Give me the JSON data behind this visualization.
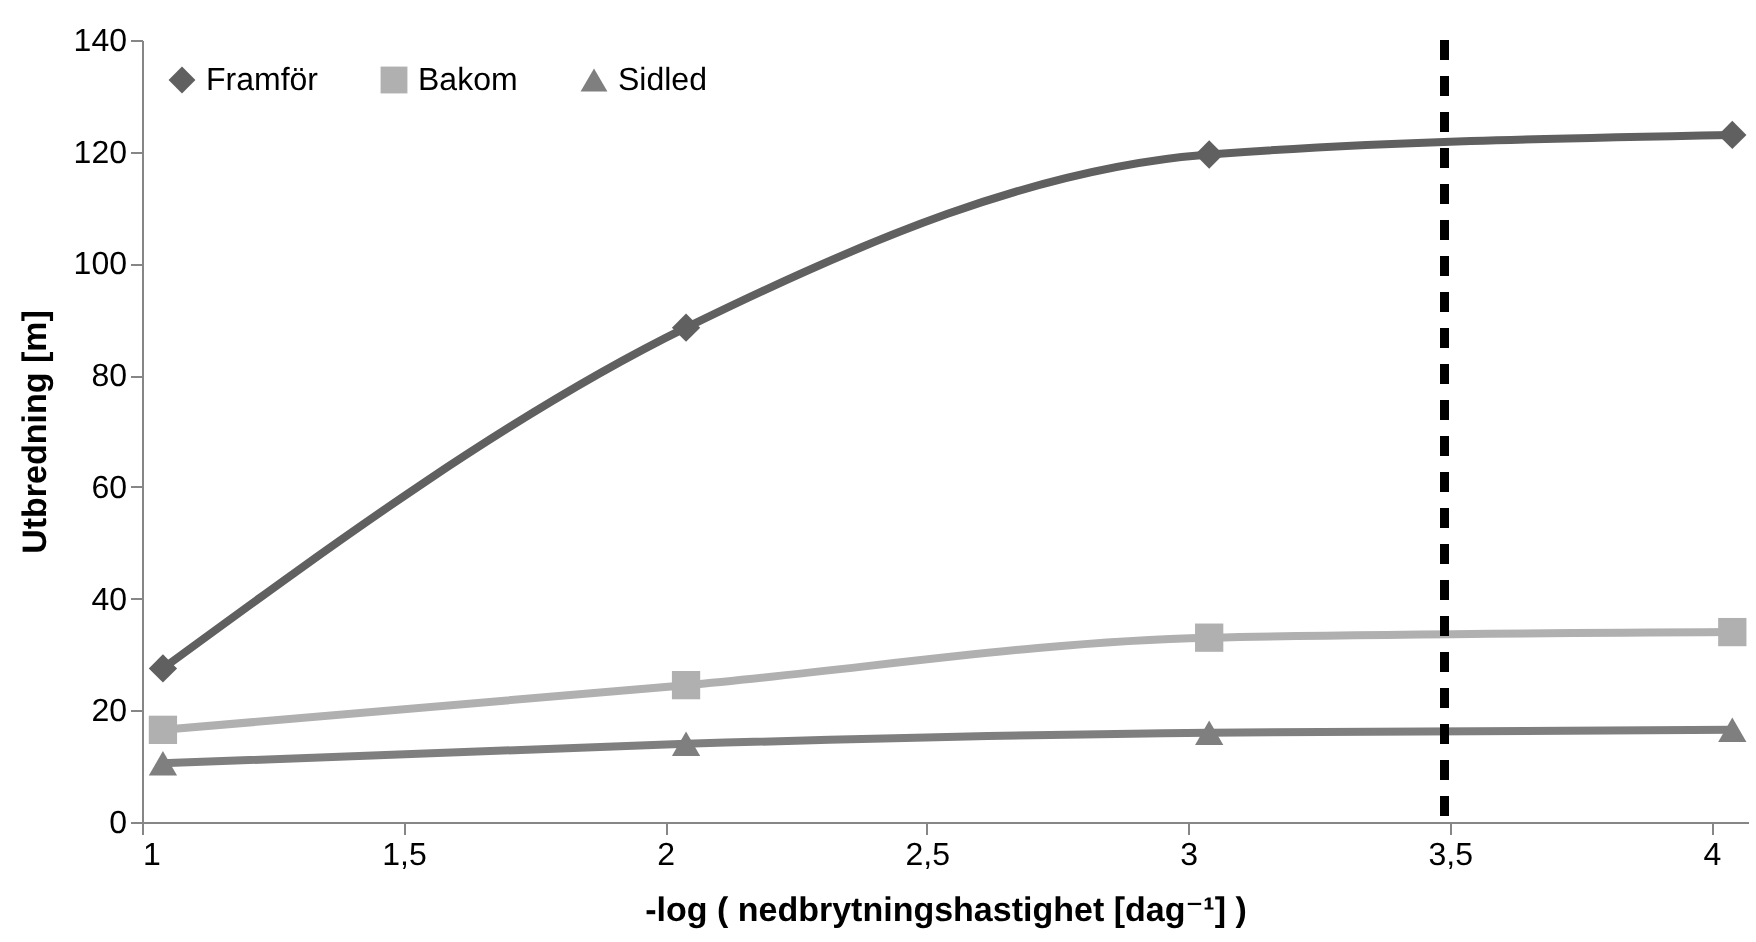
{
  "chart_data": {
    "type": "line",
    "xlabel": "-log ( nedbrytningshastighet [dag⁻¹] )",
    "ylabel": "Utbredning [m]",
    "x": [
      1.04,
      2.04,
      3.04,
      4.04
    ],
    "series": [
      {
        "name": "Framför",
        "color": "#606060",
        "marker": "diamond",
        "values": [
          27.5,
          88.5,
          119.5,
          123
        ]
      },
      {
        "name": "Bakom",
        "color": "#b0b0b0",
        "marker": "square",
        "values": [
          16.5,
          24.5,
          33,
          34
        ]
      },
      {
        "name": "Sidled",
        "color": "#7f7f7f",
        "marker": "triangle",
        "values": [
          10.5,
          14,
          16,
          16.5
        ]
      }
    ],
    "xlim": [
      1,
      4.07
    ],
    "xticks": [
      1,
      {
        "value": 1.5,
        "label": "1,5"
      },
      2,
      {
        "value": 2.5,
        "label": "2,5"
      },
      3,
      {
        "value": 3.5,
        "label": "3,5"
      },
      4
    ],
    "ylim": [
      0,
      140
    ],
    "yticks": [
      0,
      20,
      40,
      60,
      80,
      100,
      120,
      140
    ],
    "ref_lines": [
      {
        "axis": "x",
        "value": 3.49,
        "color": "#000000",
        "line_style": "dashed"
      }
    ],
    "grid": false,
    "legend": "top left"
  }
}
